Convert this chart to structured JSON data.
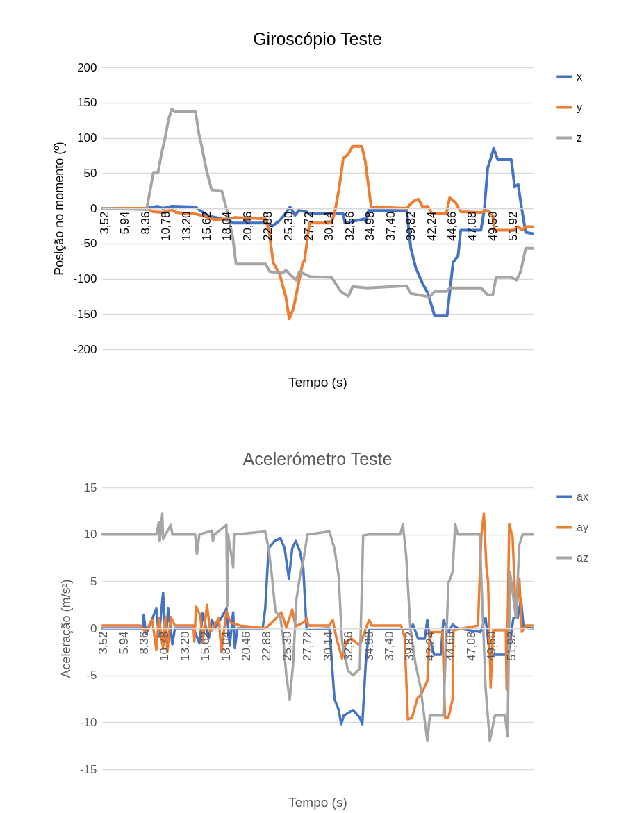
{
  "chart_data": [
    {
      "type": "line",
      "title": "Giroscópio Teste",
      "xlabel": "Tempo (s)",
      "ylabel": "Posição no momento (º)",
      "xlim": [
        3.24,
        54.25
      ],
      "xticks": [
        {
          "value": 3.52,
          "label": "3,52"
        },
        {
          "value": 5.94,
          "label": "5,94"
        },
        {
          "value": 8.36,
          "label": "8,36"
        },
        {
          "value": 10.78,
          "label": "10,78"
        },
        {
          "value": 13.2,
          "label": "13,20"
        },
        {
          "value": 15.62,
          "label": "15,62"
        },
        {
          "value": 18.04,
          "label": "18,04"
        },
        {
          "value": 20.46,
          "label": "20,46"
        },
        {
          "value": 22.88,
          "label": "22,88"
        },
        {
          "value": 25.3,
          "label": "25,30"
        },
        {
          "value": 27.72,
          "label": "27,72"
        },
        {
          "value": 30.14,
          "label": "30,14"
        },
        {
          "value": 32.56,
          "label": "32,56"
        },
        {
          "value": 34.98,
          "label": "34,98"
        },
        {
          "value": 37.4,
          "label": "37,40"
        },
        {
          "value": 39.82,
          "label": "39,82"
        },
        {
          "value": 42.24,
          "label": "42,24"
        },
        {
          "value": 44.66,
          "label": "44,66"
        },
        {
          "value": 47.08,
          "label": "47,08"
        },
        {
          "value": 49.5,
          "label": "49,50"
        },
        {
          "value": 51.92,
          "label": "51,92"
        }
      ],
      "ylim": [
        -200,
        200
      ],
      "yticks": [
        -200,
        -150,
        -100,
        -50,
        0,
        50,
        100,
        150,
        200
      ],
      "grid": "y",
      "legend": "right",
      "line_style": "solid",
      "marker": "none",
      "series": [
        {
          "name": "x",
          "color": "#4472c4",
          "x": [
            3.3,
            8.5,
            9.85,
            10.4,
            11.5,
            14.3,
            14.8,
            15.9,
            16.7,
            18.4,
            18.7,
            22.6,
            23.4,
            24.2,
            24.8,
            25.5,
            26.1,
            26.5,
            27.4,
            27.9,
            31.8,
            32.0,
            34.3,
            34.5,
            34.8,
            39.3,
            39.8,
            40.4,
            41.2,
            41.8,
            42.6,
            44.1,
            44.8,
            45.4,
            45.7,
            48.1,
            48.5,
            48.9,
            49.5,
            49.6,
            50.1,
            51.7,
            52.1,
            52.5,
            52.9,
            53.4,
            54.25
          ],
          "values": [
            0,
            0,
            3,
            0,
            3,
            2,
            -3,
            -11,
            -13,
            -18,
            -21,
            -21,
            -25,
            -18,
            -10,
            2,
            -10,
            -3,
            -5,
            -8,
            -8,
            -21,
            -15,
            -19,
            -3,
            -3,
            -57,
            -85,
            -107,
            -120,
            -152,
            -152,
            -77,
            -67,
            -31,
            -31,
            -2,
            57,
            80,
            85,
            69,
            69,
            30,
            34,
            2,
            -34,
            -36
          ]
        },
        {
          "name": "y",
          "color": "#ed7d31",
          "x": [
            3.3,
            8.5,
            9.3,
            10.4,
            11.5,
            12.0,
            14.3,
            15.9,
            16.5,
            18.1,
            19.0,
            22.6,
            23.0,
            23.5,
            24.3,
            25.0,
            25.4,
            25.9,
            27.0,
            27.2,
            27.8,
            30.4,
            30.8,
            31.3,
            31.8,
            32.4,
            32.9,
            34.0,
            34.4,
            35.1,
            39.3,
            40.1,
            40.7,
            41.2,
            41.8,
            42.3,
            44.0,
            44.4,
            45.1,
            45.7,
            48.1,
            48.9,
            49.5,
            49.7,
            51.9,
            52.5,
            53.0,
            53.4,
            54.25
          ],
          "values": [
            0,
            0,
            -5,
            -6,
            -2,
            -6,
            -8,
            -13,
            -16,
            -15,
            -13,
            -15,
            -31,
            -77,
            -95,
            -126,
            -157,
            -142,
            -77,
            -75,
            -21,
            -21,
            -5,
            28,
            71,
            77,
            88,
            88,
            67,
            2,
            0,
            10,
            13,
            2,
            3,
            -8,
            -8,
            15,
            8,
            -5,
            -6,
            -3,
            -10,
            -31,
            -31,
            -26,
            -31,
            -26,
            -26
          ]
        },
        {
          "name": "z",
          "color": "#a5a5a5",
          "x": [
            3.3,
            8.5,
            9.3,
            9.85,
            10.3,
            10.7,
            11.1,
            11.5,
            11.8,
            14.3,
            14.7,
            15.1,
            15.6,
            16.2,
            17.4,
            18.0,
            18.7,
            19.1,
            22.6,
            23.1,
            24.6,
            25.0,
            26.2,
            26.6,
            27.9,
            30.4,
            31.5,
            32.4,
            32.9,
            34.6,
            39.3,
            39.8,
            42.0,
            42.6,
            44.0,
            44.4,
            48.1,
            48.9,
            49.5,
            49.9,
            51.7,
            52.3,
            52.8,
            53.4,
            54.25
          ],
          "values": [
            0,
            -2,
            50,
            50,
            79,
            100,
            126,
            141,
            137,
            137,
            106,
            84,
            54,
            26,
            25,
            -2,
            -41,
            -79,
            -79,
            -90,
            -92,
            -88,
            -102,
            -90,
            -97,
            -98,
            -118,
            -125,
            -111,
            -113,
            -110,
            -121,
            -126,
            -118,
            -118,
            -113,
            -113,
            -123,
            -123,
            -98,
            -98,
            -102,
            -90,
            -57,
            -57
          ]
        }
      ]
    },
    {
      "type": "line",
      "title": "Acelerómetro Teste",
      "xlabel": "Tempo (s)",
      "ylabel": "Aceleração (m/s²)",
      "xlim": [
        3.38,
        54.4
      ],
      "xticks": [
        {
          "value": 3.52,
          "label": "3,52"
        },
        {
          "value": 5.94,
          "label": "5,94"
        },
        {
          "value": 8.36,
          "label": "8,36"
        },
        {
          "value": 10.78,
          "label": "10,78"
        },
        {
          "value": 13.2,
          "label": "13,20"
        },
        {
          "value": 15.62,
          "label": "15,62"
        },
        {
          "value": 18.04,
          "label": "18,04"
        },
        {
          "value": 20.46,
          "label": "20,46"
        },
        {
          "value": 22.88,
          "label": "22,88"
        },
        {
          "value": 25.3,
          "label": "25,30"
        },
        {
          "value": 27.72,
          "label": "27,72"
        },
        {
          "value": 30.14,
          "label": "30,14"
        },
        {
          "value": 32.56,
          "label": "32,56"
        },
        {
          "value": 34.98,
          "label": "34,98"
        },
        {
          "value": 37.4,
          "label": "37,40"
        },
        {
          "value": 39.82,
          "label": "39,82"
        },
        {
          "value": 42.24,
          "label": "42,24"
        },
        {
          "value": 44.66,
          "label": "44,66"
        },
        {
          "value": 47.08,
          "label": "47,08"
        },
        {
          "value": 49.5,
          "label": "49,50"
        },
        {
          "value": 51.92,
          "label": "51,92"
        }
      ],
      "ylim": [
        -15,
        15
      ],
      "yticks": [
        -15,
        -10,
        -5,
        0,
        5,
        10,
        15
      ],
      "grid": "y",
      "legend": "right",
      "line_style": "solid",
      "marker": "none",
      "series": [
        {
          "name": "ax",
          "color": "#4472c4",
          "x": [
            3.4,
            8.2,
            8.3,
            8.6,
            9.8,
            10.1,
            10.6,
            10.9,
            11.2,
            11.7,
            12.0,
            14.2,
            14.9,
            15.3,
            16.0,
            16.4,
            16.8,
            18.1,
            18.5,
            18.9,
            19.1,
            19.4,
            22.4,
            22.7,
            23.1,
            23.8,
            24.5,
            25.0,
            25.5,
            25.9,
            26.3,
            26.8,
            27.2,
            27.6,
            30.3,
            30.9,
            31.4,
            31.7,
            32.0,
            33.1,
            33.9,
            34.2,
            34.6,
            35.0,
            39.9,
            40.2,
            40.8,
            41.6,
            41.9,
            42.2,
            42.7,
            43.5,
            43.8,
            44.4,
            44.9,
            45.5,
            48.2,
            48.8,
            49.3,
            51.5,
            52.1,
            52.6,
            53.0,
            53.3,
            54.4
          ],
          "values": [
            0,
            0,
            1.4,
            -0.6,
            2.1,
            -0.9,
            3.8,
            -1.3,
            2.1,
            -1.7,
            0,
            0,
            -1.6,
            1.6,
            -1.1,
            0.9,
            0,
            2.1,
            -1.8,
            1.7,
            -2.1,
            0,
            0,
            2.1,
            8.5,
            9.3,
            9.6,
            8.5,
            5.3,
            8.5,
            9.3,
            8.2,
            6.5,
            -0.1,
            0,
            -7.5,
            -8.7,
            -10.2,
            -9.3,
            -8.7,
            -9.5,
            -10.2,
            -3.8,
            -0.1,
            -0.1,
            0.4,
            -1.1,
            -1.1,
            0.9,
            -1.1,
            -2.8,
            -2.8,
            0.9,
            -0.4,
            0.4,
            0,
            -0.4,
            1.1,
            -2.8,
            -2.8,
            1.1,
            1.1,
            3.1,
            0.1,
            0
          ]
        },
        {
          "name": "ay",
          "color": "#ed7d31",
          "x": [
            3.4,
            7.9,
            8.5,
            9.3,
            9.8,
            10.1,
            10.6,
            10.9,
            11.1,
            11.5,
            12.0,
            14.2,
            14.3,
            14.5,
            15.0,
            15.3,
            15.8,
            16.2,
            16.7,
            17.2,
            17.5,
            18.1,
            18.6,
            19.7,
            22.7,
            23.5,
            24.6,
            25.2,
            25.9,
            26.3,
            27.4,
            27.6,
            27.8,
            30.3,
            30.7,
            31.1,
            31.8,
            32.3,
            32.9,
            33.9,
            35.0,
            35.3,
            38.8,
            39.2,
            39.6,
            40.1,
            40.7,
            41.2,
            41.9,
            42.2,
            43.7,
            44.0,
            44.4,
            44.9,
            45.0,
            47.9,
            48.3,
            48.6,
            48.9,
            49.1,
            49.4,
            49.7,
            51.2,
            51.3,
            51.6,
            52.0,
            52.4,
            52.8,
            53.1,
            53.6,
            54.4
          ],
          "values": [
            0.3,
            0.3,
            -0.4,
            0.9,
            -2.3,
            1.1,
            -2.1,
            1.2,
            -2.5,
            1.2,
            0.3,
            0.3,
            -1.4,
            2.3,
            1.4,
            -1.4,
            2.5,
            -0.4,
            0.3,
            1.1,
            -2.5,
            1.8,
            0.6,
            0.3,
            0,
            0.6,
            1.7,
            0.1,
            2,
            0.2,
            0.7,
            1.1,
            0.3,
            0.3,
            0.9,
            -0.9,
            -3.2,
            -1.4,
            -1.1,
            -1.8,
            0.9,
            0.3,
            0.3,
            -0.9,
            -9.7,
            -9.5,
            -7.5,
            -7,
            -5.6,
            -0.4,
            -0.4,
            -9.5,
            -9.5,
            -7.5,
            -0.2,
            0.3,
            9.9,
            12.2,
            6.5,
            5,
            -6.3,
            -0.2,
            -0.2,
            -6.5,
            11.1,
            9.7,
            1.1,
            5.3,
            -0.4,
            0.3,
            0.3
          ]
        },
        {
          "name": "az",
          "color": "#a5a5a5",
          "x": [
            3.4,
            9.8,
            10.1,
            10.2,
            10.5,
            10.6,
            10.9,
            11.5,
            11.7,
            14.4,
            14.6,
            14.9,
            16.4,
            16.5,
            16.7,
            18.1,
            18.2,
            18.3,
            18.9,
            19.0,
            22.7,
            23.1,
            23.5,
            23.9,
            24.5,
            24.8,
            25.2,
            25.6,
            26.0,
            26.4,
            26.8,
            27.3,
            27.7,
            30.3,
            30.9,
            31.4,
            31.8,
            32.5,
            33.1,
            33.9,
            34.3,
            35.0,
            38.7,
            39.0,
            39.4,
            39.9,
            40.5,
            41.1,
            41.9,
            42.2,
            43.8,
            44.4,
            44.9,
            45.2,
            45.5,
            48.1,
            48.8,
            49.3,
            49.9,
            51.1,
            51.4,
            51.7,
            52.4,
            52.8,
            53.2,
            54.4
          ],
          "values": [
            10,
            10,
            11.3,
            9.3,
            12.2,
            9.5,
            10,
            11,
            10,
            10,
            7.9,
            10,
            10.4,
            9.3,
            10,
            11,
            2.3,
            10,
            6.5,
            10,
            10.3,
            8.5,
            5.5,
            1.8,
            1.1,
            -0.8,
            -5,
            -7.6,
            -3.8,
            3.1,
            5.5,
            7.7,
            10,
            10.3,
            8.5,
            5.5,
            -1.4,
            -4.5,
            -5,
            -4.3,
            9.9,
            10,
            10,
            11.1,
            7.7,
            -0.1,
            -3.8,
            -6.3,
            -12,
            -9.3,
            -9.3,
            4.8,
            6,
            11.1,
            10,
            10,
            -6.3,
            -12,
            -9.3,
            -9.3,
            -11.5,
            6,
            1.1,
            8.9,
            10,
            10
          ]
        }
      ]
    }
  ]
}
